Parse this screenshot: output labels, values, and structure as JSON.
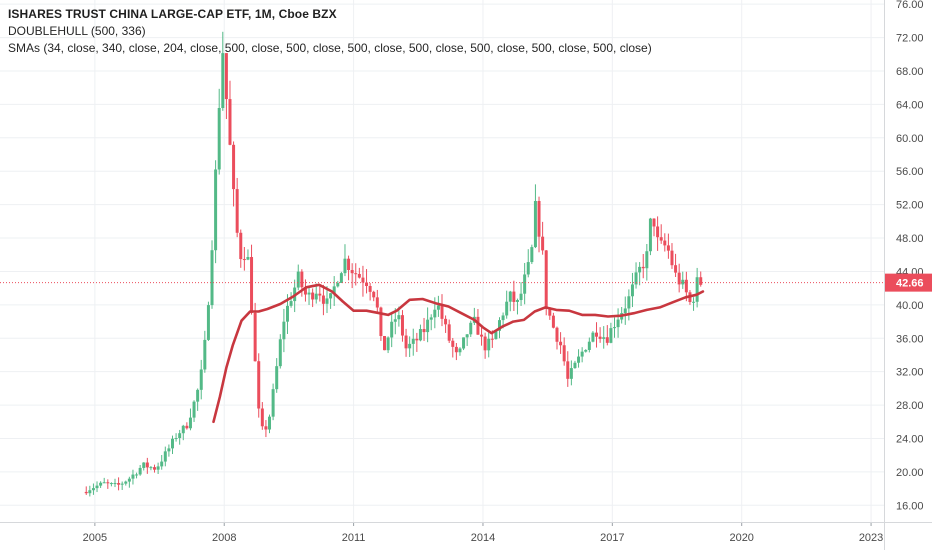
{
  "legend": {
    "title": "ISHARES TRUST CHINA LARGE-CAP ETF, 1M, Cboe BZX",
    "indicator1": "DOUBLEHULL (500, 336)",
    "indicator2": "SMAs (34, close, 340, close, 204, close, 500, close, 500, close, 500, close, 500, close, 500, close, 500, close, 500, close)"
  },
  "colors": {
    "up": "#53b987",
    "down": "#eb4d5c",
    "sma": "#c8373f",
    "last_price_bg": "#eb4d5c",
    "grid": "#eef0f3",
    "axis": "#d6d8db"
  },
  "chart_data": {
    "type": "candlestick",
    "title": "ISHARES TRUST CHINA LARGE-CAP ETF, 1M, Cboe BZX",
    "interval": "1M",
    "x_axis": {
      "range": [
        2002.8,
        2023.3
      ],
      "tick_labels": [
        "2005",
        "2008",
        "2011",
        "2014",
        "2017",
        "2020",
        "2023"
      ]
    },
    "y_axis": {
      "range": [
        14.0,
        76.5
      ],
      "tick_labels": [
        "16.00",
        "20.00",
        "24.00",
        "28.00",
        "32.00",
        "36.00",
        "40.00",
        "44.00",
        "48.00",
        "52.00",
        "56.00",
        "60.00",
        "64.00",
        "68.00",
        "72.00",
        "76.00"
      ]
    },
    "last_price": 42.66,
    "last_price_label": "42.66",
    "grid": true,
    "price_anchors": [
      [
        2004.8,
        17.6
      ],
      [
        2005.0,
        18.1
      ],
      [
        2005.3,
        18.6
      ],
      [
        2005.6,
        18.3
      ],
      [
        2005.9,
        19.3
      ],
      [
        2006.2,
        20.8
      ],
      [
        2006.5,
        20.4
      ],
      [
        2006.8,
        22.8
      ],
      [
        2007.0,
        24.6
      ],
      [
        2007.2,
        25.4
      ],
      [
        2007.45,
        29.3
      ],
      [
        2007.6,
        33.0
      ],
      [
        2007.75,
        43.0
      ],
      [
        2007.85,
        52.0
      ],
      [
        2007.95,
        63.0
      ],
      [
        2008.05,
        70.5
      ],
      [
        2008.2,
        60.0
      ],
      [
        2008.35,
        49.5
      ],
      [
        2008.5,
        45.0
      ],
      [
        2008.6,
        47.5
      ],
      [
        2008.7,
        41.0
      ],
      [
        2008.8,
        33.0
      ],
      [
        2008.9,
        26.0
      ],
      [
        2009.0,
        24.5
      ],
      [
        2009.15,
        27.0
      ],
      [
        2009.3,
        32.5
      ],
      [
        2009.45,
        38.0
      ],
      [
        2009.6,
        40.5
      ],
      [
        2009.8,
        43.2
      ],
      [
        2010.0,
        40.8
      ],
      [
        2010.25,
        42.0
      ],
      [
        2010.5,
        39.8
      ],
      [
        2010.75,
        44.0
      ],
      [
        2010.9,
        45.5
      ],
      [
        2011.0,
        44.5
      ],
      [
        2011.2,
        43.5
      ],
      [
        2011.4,
        42.8
      ],
      [
        2011.6,
        41.0
      ],
      [
        2011.75,
        34.0
      ],
      [
        2011.9,
        36.5
      ],
      [
        2012.1,
        39.0
      ],
      [
        2012.3,
        34.8
      ],
      [
        2012.5,
        35.5
      ],
      [
        2012.75,
        37.2
      ],
      [
        2013.0,
        40.5
      ],
      [
        2013.3,
        35.8
      ],
      [
        2013.5,
        33.5
      ],
      [
        2013.7,
        36.5
      ],
      [
        2013.9,
        38.0
      ],
      [
        2014.1,
        35.0
      ],
      [
        2014.3,
        35.5
      ],
      [
        2014.5,
        38.5
      ],
      [
        2014.7,
        41.0
      ],
      [
        2014.9,
        40.0
      ],
      [
        2015.05,
        43.0
      ],
      [
        2015.2,
        45.5
      ],
      [
        2015.3,
        51.5
      ],
      [
        2015.45,
        47.0
      ],
      [
        2015.55,
        40.0
      ],
      [
        2015.7,
        37.5
      ],
      [
        2015.9,
        35.0
      ],
      [
        2016.05,
        31.0
      ],
      [
        2016.2,
        32.5
      ],
      [
        2016.45,
        35.0
      ],
      [
        2016.7,
        37.0
      ],
      [
        2016.95,
        36.0
      ],
      [
        2017.2,
        38.5
      ],
      [
        2017.45,
        40.5
      ],
      [
        2017.7,
        44.0
      ],
      [
        2017.9,
        46.0
      ],
      [
        2018.0,
        51.5
      ],
      [
        2018.15,
        47.0
      ],
      [
        2018.35,
        47.0
      ],
      [
        2018.55,
        43.5
      ],
      [
        2018.75,
        42.0
      ],
      [
        2018.9,
        40.0
      ],
      [
        2019.0,
        41.5
      ],
      [
        2019.05,
        42.66
      ]
    ],
    "series": [
      {
        "name": "SMA",
        "values": [
          [
            2007.75,
            26.0
          ],
          [
            2007.9,
            29.0
          ],
          [
            2008.05,
            32.5
          ],
          [
            2008.2,
            35.2
          ],
          [
            2008.4,
            38.1
          ],
          [
            2008.6,
            39.2
          ],
          [
            2008.8,
            39.2
          ],
          [
            2009.0,
            39.5
          ],
          [
            2009.3,
            40.1
          ],
          [
            2009.6,
            41.0
          ],
          [
            2009.9,
            42.1
          ],
          [
            2010.2,
            42.4
          ],
          [
            2010.5,
            41.6
          ],
          [
            2010.75,
            40.4
          ],
          [
            2011.0,
            39.3
          ],
          [
            2011.3,
            39.3
          ],
          [
            2011.6,
            39.0
          ],
          [
            2011.8,
            38.8
          ],
          [
            2012.0,
            39.3
          ],
          [
            2012.3,
            40.6
          ],
          [
            2012.6,
            40.7
          ],
          [
            2012.9,
            40.2
          ],
          [
            2013.2,
            39.8
          ],
          [
            2013.5,
            39.0
          ],
          [
            2013.8,
            38.2
          ],
          [
            2014.0,
            37.3
          ],
          [
            2014.2,
            36.6
          ],
          [
            2014.45,
            37.4
          ],
          [
            2014.7,
            38.0
          ],
          [
            2014.95,
            38.2
          ],
          [
            2015.2,
            39.2
          ],
          [
            2015.45,
            39.7
          ],
          [
            2015.7,
            39.4
          ],
          [
            2016.0,
            39.3
          ],
          [
            2016.3,
            38.8
          ],
          [
            2016.6,
            38.8
          ],
          [
            2016.9,
            38.6
          ],
          [
            2017.2,
            38.7
          ],
          [
            2017.5,
            39.0
          ],
          [
            2017.8,
            39.4
          ],
          [
            2018.1,
            39.7
          ],
          [
            2018.4,
            40.3
          ],
          [
            2018.7,
            40.9
          ],
          [
            2018.95,
            41.2
          ],
          [
            2019.1,
            41.6
          ]
        ]
      }
    ]
  }
}
